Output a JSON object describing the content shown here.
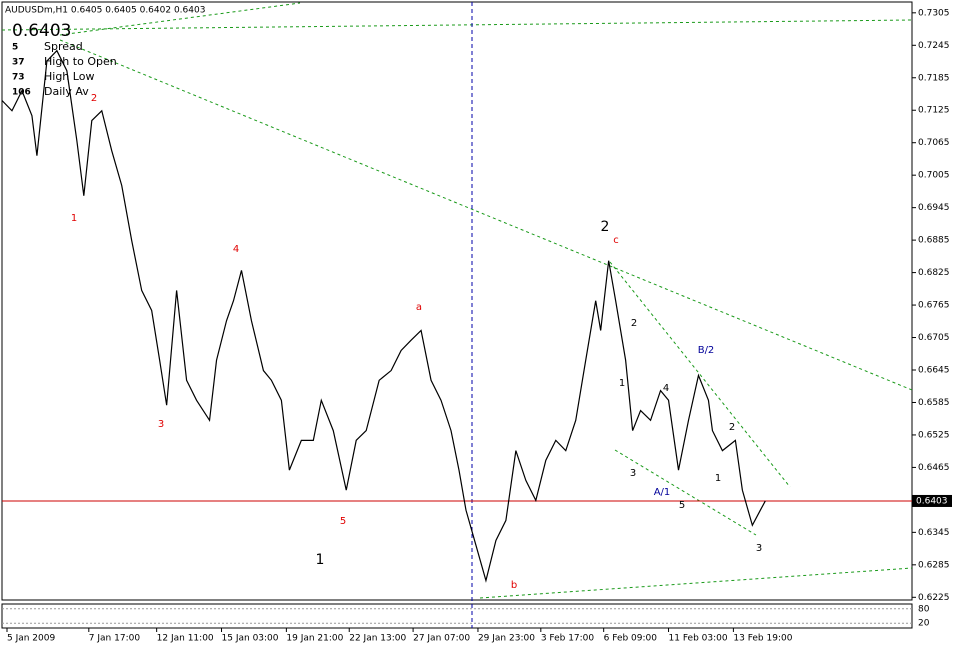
{
  "chart_data": {
    "type": "line",
    "title": "AUDUSDm,H1  0.6405 0.6405 0.6402 0.6403",
    "current_price": 0.6403,
    "info": [
      {
        "value": 5,
        "label": "Spread",
        "color": "#d4a000"
      },
      {
        "value": 37,
        "label": "High to Open",
        "color": "#2ca02c"
      },
      {
        "value": 73,
        "label": "High Low",
        "color": "#d4a000"
      },
      {
        "value": 106,
        "label": "Daily Av",
        "color": "#e03000"
      }
    ],
    "color": "#000000",
    "x": [
      0,
      10,
      20,
      30,
      35,
      45,
      55,
      65,
      75,
      82,
      90,
      100,
      110,
      120,
      130,
      140,
      150,
      158,
      165,
      175,
      185,
      195,
      208,
      215,
      225,
      232,
      240,
      250,
      262,
      270,
      280,
      288,
      300,
      312,
      320,
      332,
      345,
      355,
      365,
      378,
      390,
      400,
      410,
      420,
      430,
      440,
      450,
      458,
      465,
      475,
      485,
      495,
      505,
      515,
      525,
      535,
      545,
      555,
      565,
      575,
      585,
      595,
      600,
      608,
      615,
      620,
      625,
      632,
      640,
      650,
      660,
      668,
      678,
      688,
      698,
      708,
      712,
      722,
      735,
      742,
      752,
      760,
      765
    ],
    "values": [
      0.7143,
      0.7124,
      0.7161,
      0.7115,
      0.7041,
      0.7216,
      0.7235,
      0.7198,
      0.7069,
      0.6967,
      0.7106,
      0.7124,
      0.705,
      0.6986,
      0.6884,
      0.6792,
      0.6755,
      0.6663,
      0.658,
      0.6792,
      0.6626,
      0.6589,
      0.6552,
      0.6663,
      0.6736,
      0.6773,
      0.6829,
      0.6736,
      0.6644,
      0.6626,
      0.6589,
      0.646,
      0.6515,
      0.6515,
      0.6589,
      0.6533,
      0.6423,
      0.6515,
      0.6533,
      0.6626,
      0.6644,
      0.6681,
      0.67,
      0.6718,
      0.6626,
      0.6589,
      0.6533,
      0.646,
      0.6386,
      0.6321,
      0.6256,
      0.633,
      0.6367,
      0.6496,
      0.6441,
      0.6404,
      0.6478,
      0.6515,
      0.6496,
      0.6552,
      0.6663,
      0.6773,
      0.6718,
      0.6847,
      0.6773,
      0.6718,
      0.6663,
      0.6533,
      0.657,
      0.6552,
      0.6607,
      0.6589,
      0.646,
      0.6552,
      0.6635,
      0.6589,
      0.6533,
      0.6496,
      0.6515,
      0.6423,
      0.6358,
      0.6386,
      0.6403
    ],
    "xlim": [
      0,
      912
    ],
    "ylim": [
      0.622,
      0.7325
    ],
    "yticks": [
      0.7305,
      0.7245,
      0.7185,
      0.7125,
      0.7065,
      0.7005,
      0.6945,
      0.6885,
      0.6825,
      0.6765,
      0.6705,
      0.6645,
      0.6585,
      0.6525,
      0.6465,
      0.6345,
      0.6285,
      0.6225
    ],
    "xticks": [
      {
        "value": 5,
        "label": "5 Jan 2009"
      },
      {
        "value": 87,
        "label": "7 Jan 17:00"
      },
      {
        "value": 155,
        "label": "12 Jan 11:00"
      },
      {
        "value": 220,
        "label": "15 Jan 03:00"
      },
      {
        "value": 285,
        "label": "19 Jan 21:00"
      },
      {
        "value": 348,
        "label": "22 Jan 13:00"
      },
      {
        "value": 412,
        "label": "27 Jan 07:00"
      },
      {
        "value": 477,
        "label": "29 Jan 23:00"
      },
      {
        "value": 540,
        "label": "3 Feb 17:00"
      },
      {
        "value": 603,
        "label": "6 Feb 09:00"
      },
      {
        "value": 668,
        "label": "11 Feb 03:00"
      },
      {
        "value": 733,
        "label": "13 Feb 19:00"
      }
    ],
    "osc_ticks": [
      80,
      20
    ],
    "annotations": [
      {
        "text": "2",
        "color": "#e00000"
      },
      {
        "text": "1",
        "color": "#e00000"
      },
      {
        "text": "3",
        "color": "#e00000"
      },
      {
        "text": "4",
        "color": "#e00000"
      },
      {
        "text": "5",
        "color": "#e00000"
      },
      {
        "text": "a",
        "color": "#e00000"
      },
      {
        "text": "b",
        "color": "#e00000"
      },
      {
        "text": "c",
        "color": "#e00000"
      },
      {
        "text": "2",
        "color": "#000000"
      },
      {
        "text": "1",
        "color": "#000000"
      },
      {
        "text": "2",
        "color": "#000000"
      },
      {
        "text": "1",
        "color": "#000000"
      },
      {
        "text": "4",
        "color": "#000000"
      },
      {
        "text": "3",
        "color": "#000000"
      },
      {
        "text": "5",
        "color": "#000000"
      },
      {
        "text": "1",
        "color": "#000000"
      },
      {
        "text": "2",
        "color": "#000000"
      },
      {
        "text": "3",
        "color": "#000000"
      },
      {
        "text": "B/2",
        "color": "#000099"
      },
      {
        "text": "A/1",
        "color": "#000099"
      }
    ]
  }
}
